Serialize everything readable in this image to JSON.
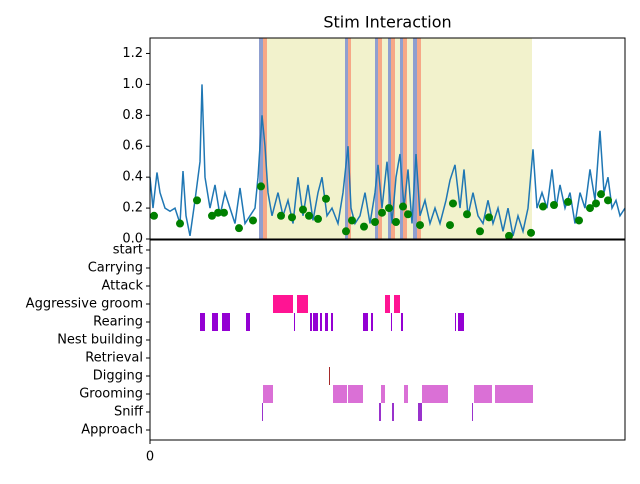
{
  "chart_data": [
    {
      "type": "line",
      "title": "Stim Interaction",
      "color": "#1f77b4",
      "xlim": [
        0,
        475
      ],
      "ylim": [
        0,
        1.3
      ],
      "yticks": [
        {
          "value": 0,
          "label": "0.0"
        },
        0.2,
        0.4,
        0.6,
        0.8,
        {
          "value": 1,
          "label": "1.0"
        },
        1.2
      ],
      "x": [
        0,
        3,
        7,
        10,
        15,
        20,
        25,
        30,
        33,
        36,
        40,
        45,
        50,
        52,
        55,
        60,
        65,
        70,
        75,
        80,
        85,
        90,
        95,
        100,
        105,
        108,
        112,
        115,
        118,
        122,
        128,
        133,
        138,
        143,
        148,
        153,
        158,
        163,
        168,
        172,
        177,
        182,
        188,
        193,
        198,
        201,
        205,
        210,
        215,
        220,
        225,
        228,
        232,
        237,
        242,
        246,
        250,
        254,
        258,
        262,
        266,
        270,
        275,
        280,
        285,
        290,
        296,
        300,
        305,
        310,
        314,
        318,
        323,
        328,
        333,
        338,
        343,
        348,
        353,
        358,
        363,
        368,
        373,
        378,
        383,
        387,
        392,
        397,
        402,
        406,
        410,
        415,
        420,
        425,
        430,
        435,
        440,
        445,
        450,
        454,
        458,
        462,
        466,
        470,
        475
      ],
      "values": [
        0.4,
        0.2,
        0.43,
        0.3,
        0.2,
        0.18,
        0.2,
        0.1,
        0.44,
        0.15,
        0.02,
        0.25,
        0.5,
        1.0,
        0.4,
        0.2,
        0.35,
        0.15,
        0.3,
        0.2,
        0.1,
        0.33,
        0.1,
        0.15,
        0.2,
        0.4,
        0.8,
        0.6,
        0.3,
        0.15,
        0.3,
        0.15,
        0.25,
        0.1,
        0.4,
        0.15,
        0.35,
        0.12,
        0.3,
        0.4,
        0.15,
        0.2,
        0.1,
        0.3,
        0.6,
        0.2,
        0.1,
        0.15,
        0.3,
        0.1,
        0.3,
        0.48,
        0.2,
        0.5,
        0.1,
        0.4,
        0.55,
        0.2,
        0.45,
        0.1,
        0.55,
        0.15,
        0.25,
        0.1,
        0.2,
        0.1,
        0.25,
        0.38,
        0.48,
        0.2,
        0.45,
        0.15,
        0.3,
        0.15,
        0.1,
        0.25,
        0.1,
        0.2,
        0.05,
        0.2,
        0.02,
        0.15,
        0.05,
        0.2,
        0.58,
        0.2,
        0.3,
        0.2,
        0.45,
        0.2,
        0.35,
        0.2,
        0.3,
        0.1,
        0.3,
        0.2,
        0.45,
        0.25,
        0.7,
        0.3,
        0.4,
        0.2,
        0.25,
        0.15,
        0.2
      ],
      "markers": {
        "color": "#008000",
        "x": [
          4,
          30,
          47,
          62,
          68,
          74,
          89,
          103,
          111,
          131,
          142,
          153,
          159,
          168,
          176,
          196,
          202,
          214,
          225,
          232,
          239,
          246,
          253,
          258,
          270,
          300,
          303,
          317,
          330,
          339,
          359,
          381,
          393,
          404,
          418,
          429,
          440,
          446,
          451,
          458
        ],
        "values": [
          0.15,
          0.1,
          0.25,
          0.15,
          0.17,
          0.17,
          0.07,
          0.12,
          0.34,
          0.15,
          0.14,
          0.19,
          0.15,
          0.13,
          0.26,
          0.05,
          0.12,
          0.08,
          0.11,
          0.17,
          0.2,
          0.11,
          0.21,
          0.16,
          0.09,
          0.09,
          0.23,
          0.16,
          0.05,
          0.14,
          0.02,
          0.04,
          0.21,
          0.22,
          0.24,
          0.12,
          0.2,
          0.23,
          0.29,
          0.25
        ]
      },
      "shading": [
        {
          "x": [
            110,
            382
          ],
          "color": "#f2f2cc"
        },
        {
          "x": [
            109,
            113
          ],
          "color": "#8f9fd0"
        },
        {
          "x": [
            113,
            117
          ],
          "color": "#f6a887"
        },
        {
          "x": [
            195,
            198
          ],
          "color": "#8f9fd0"
        },
        {
          "x": [
            198,
            201
          ],
          "color": "#f6a887"
        },
        {
          "x": [
            225,
            228
          ],
          "color": "#8f9fd0"
        },
        {
          "x": [
            228,
            232
          ],
          "color": "#f6a887"
        },
        {
          "x": [
            238,
            241
          ],
          "color": "#8f9fd0"
        },
        {
          "x": [
            241,
            245
          ],
          "color": "#f6a887"
        },
        {
          "x": [
            250,
            253
          ],
          "color": "#8f9fd0"
        },
        {
          "x": [
            253,
            257
          ],
          "color": "#f6a887"
        },
        {
          "x": [
            263,
            267
          ],
          "color": "#8f9fd0"
        },
        {
          "x": [
            267,
            271
          ],
          "color": "#f6a887"
        }
      ]
    },
    {
      "type": "timeline",
      "xlim": [
        0,
        475
      ],
      "xticks": [
        0
      ],
      "categories": [
        "start",
        "Carrying",
        "Attack",
        "Aggressive groom",
        "Rearing",
        "Nest building",
        "Retrieval",
        "Digging",
        "Grooming",
        "Sniff",
        "Approach"
      ],
      "colors": [
        null,
        null,
        null,
        "#ff1493",
        "#9400d3",
        null,
        null,
        "#a52a2a",
        "#da70d6",
        "#9932cc",
        null
      ],
      "segments": [
        [],
        [],
        [],
        [
          [
            123,
            143
          ],
          [
            147,
            158
          ],
          [
            235,
            240
          ],
          [
            244,
            250
          ]
        ],
        [
          [
            50,
            55
          ],
          [
            62,
            68
          ],
          [
            72,
            80
          ],
          [
            96,
            100
          ],
          [
            144,
            145
          ],
          [
            160,
            162
          ],
          [
            163,
            168
          ],
          [
            170,
            172
          ],
          [
            175,
            178
          ],
          [
            181,
            183
          ],
          [
            213,
            218
          ],
          [
            221,
            223
          ],
          [
            241,
            242
          ],
          [
            251,
            253
          ],
          [
            305,
            306
          ],
          [
            308,
            314
          ]
        ],
        [],
        [],
        [
          [
            179,
            180
          ]
        ],
        [
          [
            113,
            123
          ],
          [
            183,
            197
          ],
          [
            198,
            213
          ],
          [
            231,
            235
          ],
          [
            254,
            258
          ],
          [
            272,
            298
          ],
          [
            324,
            342
          ],
          [
            345,
            383
          ]
        ],
        [
          [
            112,
            113
          ],
          [
            229,
            231
          ],
          [
            242,
            244
          ],
          [
            268,
            272
          ],
          [
            322,
            323
          ]
        ],
        []
      ]
    }
  ]
}
